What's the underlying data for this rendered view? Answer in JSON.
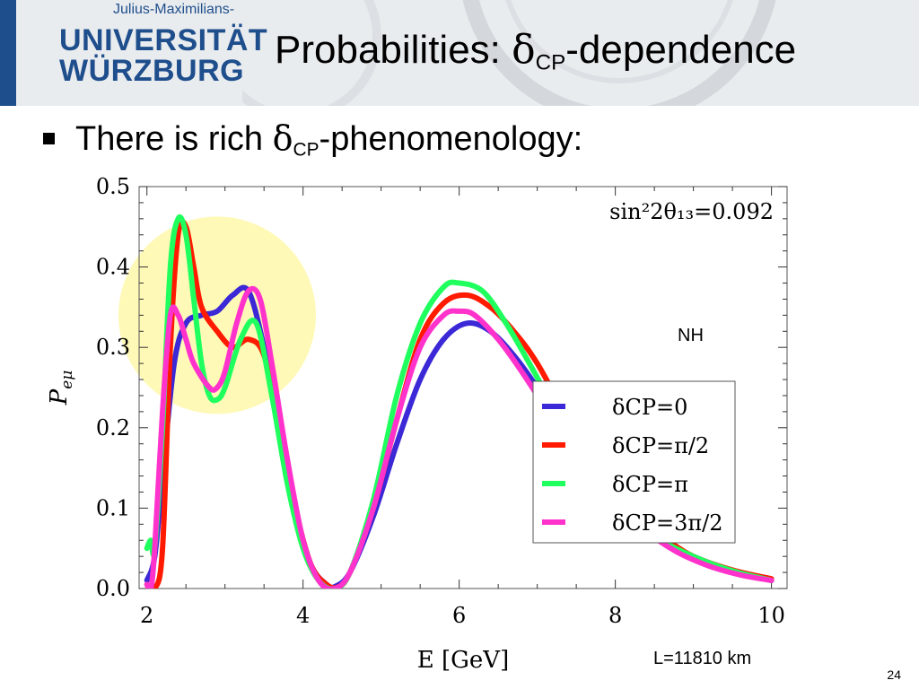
{
  "header": {
    "logo_top": "Julius-Maximilians-",
    "logo_line1": "UNIVERSITÄT",
    "logo_line2": "WÜRZBURG",
    "title_prefix": "Probabilities: ",
    "title_delta": "δ",
    "title_sub": "CP",
    "title_suffix": "-dependence"
  },
  "bullet": {
    "text_prefix": "There is rich ",
    "delta": "δ",
    "sub": "CP",
    "text_suffix": "-phenomenology:"
  },
  "page_number": "24",
  "chart_data": {
    "type": "line",
    "xlabel": "E [GeV]",
    "ylabel_main": "P",
    "ylabel_sub": "eμ",
    "xlim": [
      1.9,
      10.2
    ],
    "ylim": [
      0.0,
      0.5
    ],
    "x_ticks": [
      "2",
      "4",
      "6",
      "8",
      "10"
    ],
    "y_ticks": [
      "0.0",
      "0.1",
      "0.2",
      "0.3",
      "0.4",
      "0.5"
    ],
    "annotations": {
      "param": "sin²2θ₁₃=0.092",
      "hierarchy": "NH",
      "baseline": "L=11810 km"
    },
    "highlight": {
      "center": [
        2.9,
        0.34
      ],
      "color": "#fff9b8"
    },
    "series": [
      {
        "name": "δCP=0",
        "color": "#3b28d6",
        "x": [
          2.0,
          2.1,
          2.2,
          2.35,
          2.5,
          2.7,
          2.9,
          3.1,
          3.3,
          3.5,
          3.7,
          3.9,
          4.1,
          4.3,
          4.4,
          4.6,
          4.9,
          5.2,
          5.5,
          5.8,
          6.1,
          6.4,
          6.7,
          7.0,
          7.4,
          7.8,
          8.2,
          8.6,
          9.0,
          9.5,
          10.0
        ],
        "y": [
          0.01,
          0.04,
          0.14,
          0.28,
          0.33,
          0.34,
          0.345,
          0.365,
          0.37,
          0.3,
          0.2,
          0.1,
          0.03,
          0.005,
          0.002,
          0.02,
          0.09,
          0.18,
          0.26,
          0.31,
          0.33,
          0.32,
          0.29,
          0.25,
          0.19,
          0.14,
          0.09,
          0.06,
          0.04,
          0.022,
          0.01
        ]
      },
      {
        "name": "δCP=π/2",
        "color": "#ff1a00",
        "x": [
          2.0,
          2.1,
          2.2,
          2.3,
          2.4,
          2.5,
          2.6,
          2.7,
          2.9,
          3.1,
          3.3,
          3.5,
          3.7,
          3.9,
          4.1,
          4.3,
          4.45,
          4.6,
          4.9,
          5.2,
          5.5,
          5.8,
          6.1,
          6.4,
          6.7,
          7.0,
          7.4,
          7.8,
          8.2,
          8.6,
          9.0,
          9.5,
          10.0
        ],
        "y": [
          0.005,
          0.0,
          0.05,
          0.3,
          0.44,
          0.45,
          0.4,
          0.35,
          0.32,
          0.3,
          0.31,
          0.29,
          0.2,
          0.1,
          0.03,
          0.005,
          0.002,
          0.02,
          0.1,
          0.21,
          0.31,
          0.355,
          0.365,
          0.35,
          0.32,
          0.28,
          0.21,
          0.15,
          0.1,
          0.065,
          0.04,
          0.023,
          0.012
        ]
      },
      {
        "name": "δCP=π",
        "color": "#1fff5e",
        "x": [
          2.0,
          2.05,
          2.1,
          2.2,
          2.3,
          2.4,
          2.5,
          2.6,
          2.7,
          2.8,
          2.9,
          3.0,
          3.2,
          3.4,
          3.6,
          3.8,
          4.0,
          4.2,
          4.4,
          4.6,
          4.9,
          5.2,
          5.5,
          5.8,
          6.0,
          6.3,
          6.6,
          6.9,
          7.3,
          7.7,
          8.1,
          8.5,
          9.0,
          9.5,
          10.0
        ],
        "y": [
          0.05,
          0.06,
          0.05,
          0.2,
          0.4,
          0.46,
          0.44,
          0.36,
          0.28,
          0.24,
          0.235,
          0.25,
          0.31,
          0.33,
          0.24,
          0.13,
          0.05,
          0.01,
          0.0,
          0.02,
          0.11,
          0.24,
          0.33,
          0.375,
          0.38,
          0.37,
          0.33,
          0.28,
          0.21,
          0.15,
          0.1,
          0.065,
          0.04,
          0.022,
          0.01
        ]
      },
      {
        "name": "δCP=3π/2",
        "color": "#ff33cc",
        "x": [
          2.0,
          2.05,
          2.1,
          2.2,
          2.3,
          2.4,
          2.5,
          2.6,
          2.8,
          2.9,
          3.0,
          3.15,
          3.3,
          3.45,
          3.6,
          3.8,
          4.0,
          4.2,
          4.4,
          4.6,
          4.9,
          5.2,
          5.5,
          5.8,
          6.0,
          6.2,
          6.5,
          6.8,
          7.2,
          7.6,
          8.0,
          8.4,
          8.8,
          9.2,
          9.6,
          10.0
        ],
        "y": [
          0.005,
          0.0,
          0.05,
          0.22,
          0.34,
          0.34,
          0.31,
          0.28,
          0.25,
          0.25,
          0.27,
          0.33,
          0.37,
          0.36,
          0.28,
          0.16,
          0.06,
          0.01,
          0.0,
          0.02,
          0.1,
          0.21,
          0.3,
          0.34,
          0.345,
          0.34,
          0.31,
          0.27,
          0.21,
          0.15,
          0.1,
          0.07,
          0.045,
          0.028,
          0.017,
          0.01
        ]
      }
    ]
  }
}
